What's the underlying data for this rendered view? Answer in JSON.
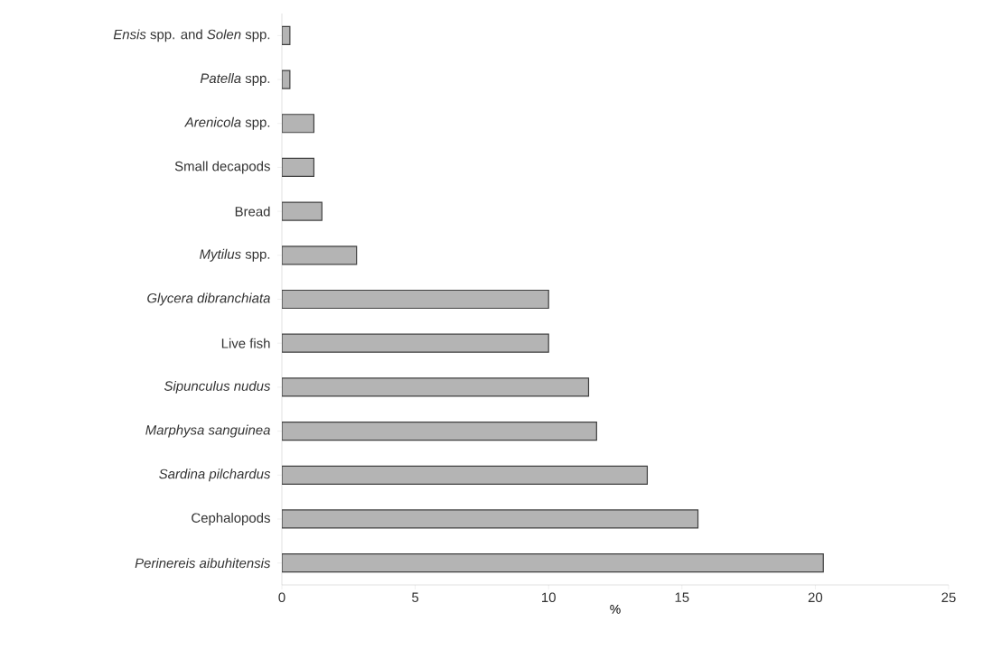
{
  "chart_data": {
    "type": "bar",
    "orientation": "horizontal",
    "xlabel": "%",
    "categories": [
      "*Ensis* spp. and *Solen* spp.",
      "*Patella* spp.",
      "*Arenicola* spp.",
      "Small decapods",
      "Bread",
      "*Mytilus* spp.",
      "*Glycera dibranchiata*",
      "Live fish",
      "*Sipunculus nudus*",
      "*Marphysa sanguinea*",
      "*Sardina pilchardus*",
      "Cephalopods",
      "*Perinereis aibuhitensis*"
    ],
    "values": [
      0.3,
      0.3,
      1.2,
      1.2,
      1.5,
      2.8,
      10.0,
      10.0,
      11.5,
      11.8,
      13.7,
      15.6,
      20.3
    ],
    "color": "#b4b4b4",
    "xlim": [
      0,
      25
    ],
    "xticks": [
      0,
      5,
      10,
      15,
      20,
      25
    ]
  }
}
